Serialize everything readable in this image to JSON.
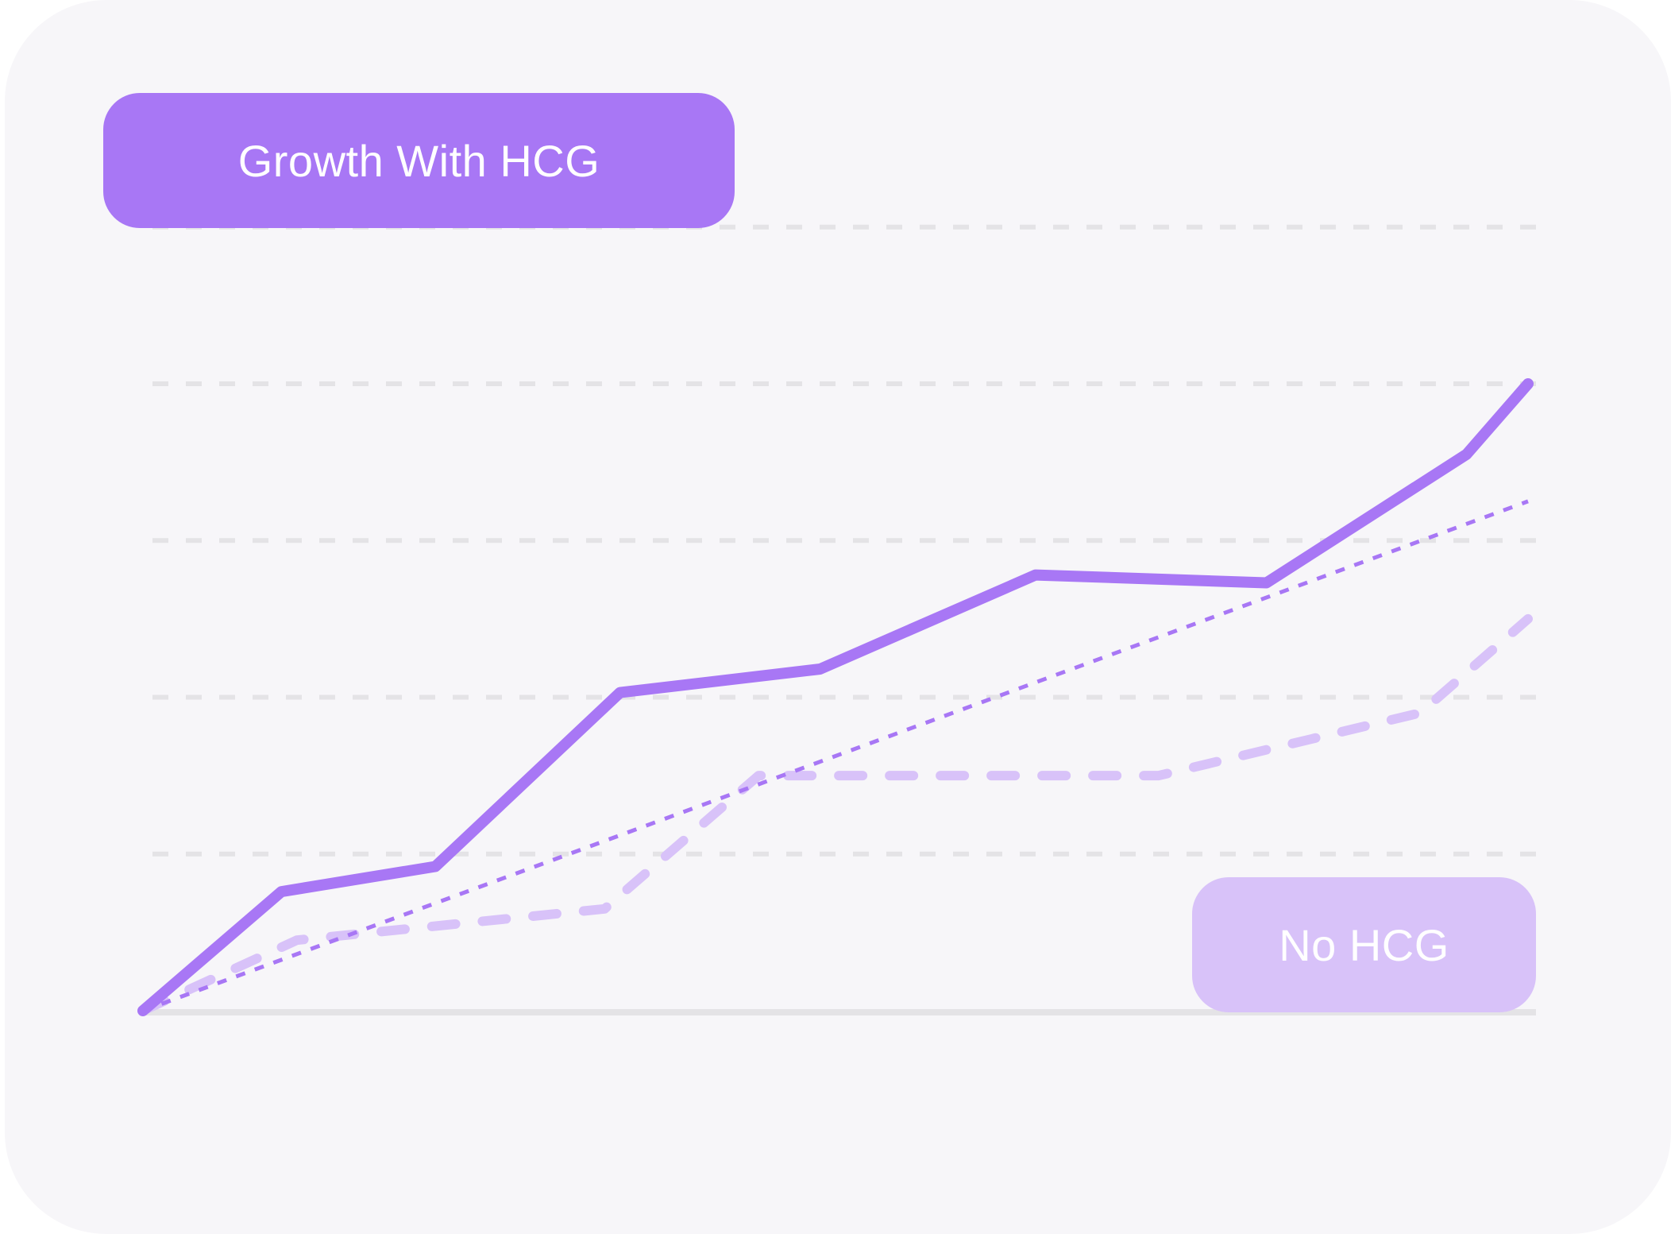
{
  "chart_data": {
    "type": "line",
    "title": "",
    "xlabel": "",
    "ylabel": "",
    "x": [
      0,
      1,
      2,
      3,
      4,
      5,
      6,
      7,
      8,
      9
    ],
    "xlim": [
      0,
      9
    ],
    "ylim": [
      0,
      4
    ],
    "grid": true,
    "grid_lines_y": [
      1,
      2,
      3,
      4,
      5
    ],
    "series": [
      {
        "name": "Growth With HCG",
        "style": "solid",
        "color": "#a877f5",
        "points": [
          [
            0,
            0
          ],
          [
            0.9,
            0.76
          ],
          [
            1.9,
            0.92
          ],
          [
            3.1,
            2.03
          ],
          [
            4.4,
            2.18
          ],
          [
            5.8,
            2.78
          ],
          [
            7.3,
            2.73
          ],
          [
            8.6,
            3.55
          ],
          [
            9.0,
            4.0
          ]
        ]
      },
      {
        "name": "No HCG",
        "style": "dashed",
        "color": "#d8c2f9",
        "points": [
          [
            0,
            0
          ],
          [
            1.0,
            0.45
          ],
          [
            3.0,
            0.65
          ],
          [
            4.0,
            1.5
          ],
          [
            6.6,
            1.5
          ],
          [
            8.3,
            1.9
          ],
          [
            9.0,
            2.5
          ]
        ]
      },
      {
        "style": "dotted",
        "color": "#a877f5",
        "points": [
          [
            0,
            0
          ],
          [
            9.0,
            3.25
          ]
        ]
      }
    ],
    "labels": [
      {
        "text": "Growth With HCG",
        "color": "#a877f5"
      },
      {
        "text": "No HCG",
        "color": "#d8c2f9"
      }
    ],
    "colors": {
      "background": "#f7f6f9",
      "grid": "#e4e3e6",
      "axis": "#e4e3e6",
      "label_text": "#ffffff"
    }
  }
}
